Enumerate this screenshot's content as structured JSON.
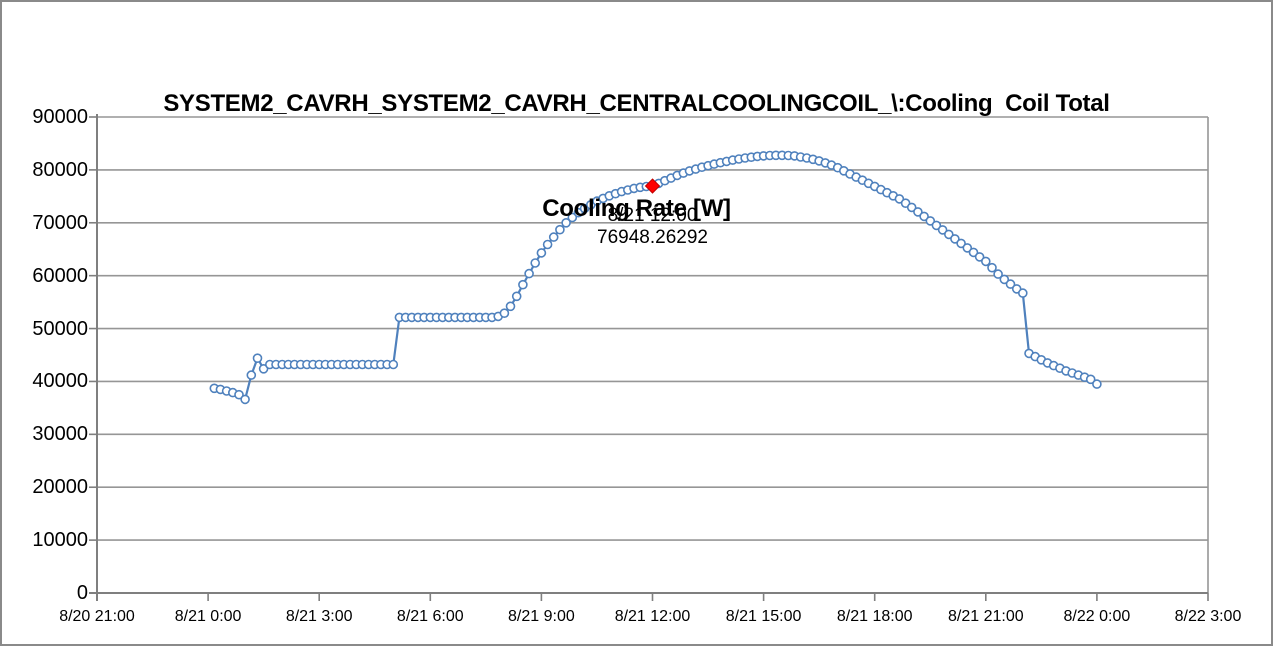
{
  "chart_data": {
    "type": "line",
    "title": "SYSTEM2_CAVRH_SYSTEM2_CAVRH_CENTRALCOOLINGCOIL_\\:Cooling  Coil Total Cooling Rate [W]",
    "title_line1": "SYSTEM2_CAVRH_SYSTEM2_CAVRH_CENTRALCOOLINGCOIL_\\:Cooling  Coil Total",
    "title_line2": "Cooling Rate [W]",
    "xlabel": "",
    "ylabel": "",
    "legend": "none",
    "grid": "horizontal",
    "ylim": [
      0,
      90000
    ],
    "y_ticks": [
      0,
      10000,
      20000,
      30000,
      40000,
      50000,
      60000,
      70000,
      80000,
      90000
    ],
    "x_range_minutes": [
      -180,
      1620
    ],
    "x_ticks": [
      {
        "minutes": -180,
        "label": "8/20 21:00"
      },
      {
        "minutes": 0,
        "label": "8/21 0:00"
      },
      {
        "minutes": 180,
        "label": "8/21 3:00"
      },
      {
        "minutes": 360,
        "label": "8/21 6:00"
      },
      {
        "minutes": 540,
        "label": "8/21 9:00"
      },
      {
        "minutes": 720,
        "label": "8/21 12:00"
      },
      {
        "minutes": 900,
        "label": "8/21 15:00"
      },
      {
        "minutes": 1080,
        "label": "8/21 18:00"
      },
      {
        "minutes": 1260,
        "label": "8/21 21:00"
      },
      {
        "minutes": 1440,
        "label": "8/22 0:00"
      },
      {
        "minutes": 1620,
        "label": "8/22 3:00"
      }
    ],
    "colors": {
      "line": "#4F81BD",
      "marker_fill": "#FFFFFF",
      "highlight": "#FF0000",
      "grid": "#969696",
      "axis": "#7F7F7F",
      "frame": "#8A8A8A",
      "text": "#000000"
    },
    "series": [
      {
        "name": "Cooling Coil Total Cooling Rate [W]",
        "color": "#4F81BD",
        "marker": "open-circle",
        "points": [
          [
            10,
            38700
          ],
          [
            20,
            38500
          ],
          [
            30,
            38200
          ],
          [
            40,
            37900
          ],
          [
            50,
            37500
          ],
          [
            60,
            36600
          ],
          [
            70,
            41200
          ],
          [
            80,
            44400
          ],
          [
            90,
            42400
          ],
          [
            100,
            43200
          ],
          [
            110,
            43200
          ],
          [
            120,
            43200
          ],
          [
            130,
            43200
          ],
          [
            140,
            43200
          ],
          [
            150,
            43200
          ],
          [
            160,
            43200
          ],
          [
            170,
            43200
          ],
          [
            180,
            43200
          ],
          [
            190,
            43200
          ],
          [
            200,
            43200
          ],
          [
            210,
            43200
          ],
          [
            220,
            43200
          ],
          [
            230,
            43200
          ],
          [
            240,
            43200
          ],
          [
            250,
            43200
          ],
          [
            260,
            43200
          ],
          [
            270,
            43200
          ],
          [
            280,
            43200
          ],
          [
            290,
            43200
          ],
          [
            300,
            43200
          ],
          [
            310,
            52100
          ],
          [
            320,
            52100
          ],
          [
            330,
            52100
          ],
          [
            340,
            52100
          ],
          [
            350,
            52100
          ],
          [
            360,
            52100
          ],
          [
            370,
            52100
          ],
          [
            380,
            52100
          ],
          [
            390,
            52100
          ],
          [
            400,
            52100
          ],
          [
            410,
            52100
          ],
          [
            420,
            52100
          ],
          [
            430,
            52100
          ],
          [
            440,
            52100
          ],
          [
            450,
            52100
          ],
          [
            460,
            52100
          ],
          [
            470,
            52300
          ],
          [
            480,
            52900
          ],
          [
            490,
            54200
          ],
          [
            500,
            56100
          ],
          [
            510,
            58300
          ],
          [
            520,
            60400
          ],
          [
            530,
            62400
          ],
          [
            540,
            64300
          ],
          [
            550,
            65900
          ],
          [
            560,
            67300
          ],
          [
            570,
            68700
          ],
          [
            580,
            70000
          ],
          [
            590,
            71000
          ],
          [
            600,
            71900
          ],
          [
            610,
            72700
          ],
          [
            620,
            73400
          ],
          [
            630,
            74100
          ],
          [
            640,
            74600
          ],
          [
            650,
            75100
          ],
          [
            660,
            75500
          ],
          [
            670,
            75900
          ],
          [
            680,
            76200
          ],
          [
            690,
            76500
          ],
          [
            700,
            76700
          ],
          [
            710,
            76850
          ],
          [
            720,
            76948.26292
          ],
          [
            730,
            77450
          ],
          [
            740,
            77950
          ],
          [
            750,
            78450
          ],
          [
            760,
            78950
          ],
          [
            770,
            79400
          ],
          [
            780,
            79800
          ],
          [
            790,
            80150
          ],
          [
            800,
            80500
          ],
          [
            810,
            80800
          ],
          [
            820,
            81100
          ],
          [
            830,
            81350
          ],
          [
            840,
            81600
          ],
          [
            850,
            81850
          ],
          [
            860,
            82050
          ],
          [
            870,
            82250
          ],
          [
            880,
            82400
          ],
          [
            890,
            82550
          ],
          [
            900,
            82650
          ],
          [
            910,
            82720
          ],
          [
            920,
            82760
          ],
          [
            930,
            82760
          ],
          [
            940,
            82720
          ],
          [
            950,
            82640
          ],
          [
            960,
            82440
          ],
          [
            970,
            82240
          ],
          [
            980,
            82000
          ],
          [
            990,
            81700
          ],
          [
            1000,
            81330
          ],
          [
            1010,
            80900
          ],
          [
            1020,
            80420
          ],
          [
            1030,
            79820
          ],
          [
            1040,
            79230
          ],
          [
            1050,
            78640
          ],
          [
            1060,
            78050
          ],
          [
            1070,
            77460
          ],
          [
            1080,
            76870
          ],
          [
            1090,
            76280
          ],
          [
            1100,
            75690
          ],
          [
            1110,
            75100
          ],
          [
            1120,
            74510
          ],
          [
            1130,
            73700
          ],
          [
            1140,
            72900
          ],
          [
            1150,
            72050
          ],
          [
            1160,
            71200
          ],
          [
            1170,
            70350
          ],
          [
            1180,
            69500
          ],
          [
            1190,
            68650
          ],
          [
            1200,
            67800
          ],
          [
            1210,
            66950
          ],
          [
            1220,
            66100
          ],
          [
            1230,
            65250
          ],
          [
            1240,
            64400
          ],
          [
            1250,
            63550
          ],
          [
            1260,
            62700
          ],
          [
            1270,
            61500
          ],
          [
            1280,
            60300
          ],
          [
            1290,
            59300
          ],
          [
            1300,
            58400
          ],
          [
            1310,
            57500
          ],
          [
            1320,
            56700
          ],
          [
            1330,
            45300
          ],
          [
            1340,
            44700
          ],
          [
            1350,
            44100
          ],
          [
            1360,
            43500
          ],
          [
            1370,
            43000
          ],
          [
            1380,
            42500
          ],
          [
            1390,
            42000
          ],
          [
            1400,
            41600
          ],
          [
            1410,
            41200
          ],
          [
            1420,
            40800
          ],
          [
            1430,
            40400
          ],
          [
            1440,
            39500
          ]
        ]
      }
    ],
    "highlight_point": {
      "minutes": 720,
      "value": 76948.26292,
      "marker": "red-diamond",
      "color": "#FF0000",
      "label_line1": "8/21 12:00",
      "label_line2": "76948.26292"
    }
  }
}
